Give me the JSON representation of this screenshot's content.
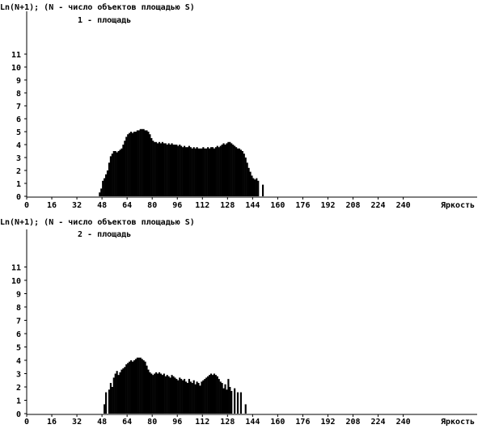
{
  "chart_data": [
    {
      "type": "bar",
      "title": "Ln(N+1); (N - число объектов площадью S)",
      "subtitle": "1 - площадь",
      "xlabel": "Яркость",
      "ylabel": "",
      "xlim": [
        0,
        255
      ],
      "ylim": [
        0,
        11
      ],
      "xticks": [
        "0",
        "16",
        "32",
        "48",
        "64",
        "80",
        "96",
        "112",
        "128",
        "144",
        "160",
        "176",
        "192",
        "208",
        "224",
        "240"
      ],
      "yticks": [
        "0",
        "1",
        "2",
        "3",
        "4",
        "5",
        "6",
        "7",
        "8",
        "9",
        "10",
        "11"
      ],
      "bar_color": "#000000",
      "x_start": 46,
      "values": [
        0.3,
        0.6,
        1.2,
        1.4,
        1.7,
        2.0,
        2.6,
        3.1,
        3.3,
        3.5,
        3.5,
        3.4,
        3.5,
        3.6,
        3.7,
        4.0,
        4.3,
        4.6,
        4.8,
        4.9,
        5.0,
        4.9,
        5.0,
        5.0,
        5.1,
        5.1,
        5.2,
        5.2,
        5.2,
        5.1,
        5.1,
        5.0,
        4.8,
        4.5,
        4.3,
        4.2,
        4.2,
        4.1,
        4.2,
        4.1,
        4.2,
        4.1,
        4.1,
        4.0,
        4.1,
        4.0,
        4.1,
        4.0,
        4.0,
        4.0,
        3.9,
        4.0,
        3.9,
        3.8,
        3.9,
        3.8,
        3.8,
        3.9,
        3.8,
        3.7,
        3.8,
        3.7,
        3.8,
        3.7,
        3.7,
        3.7,
        3.8,
        3.7,
        3.7,
        3.8,
        3.7,
        3.8,
        3.8,
        3.7,
        3.8,
        3.9,
        3.8,
        3.9,
        4.0,
        4.1,
        4.0,
        4.1,
        4.2,
        4.2,
        4.1,
        4.0,
        3.9,
        3.8,
        3.7,
        3.7,
        3.6,
        3.5,
        3.3,
        3.0,
        2.6,
        2.2,
        1.9,
        1.6,
        1.4,
        1.3,
        1.4,
        1.2,
        0.0,
        0.0,
        0.9
      ]
    },
    {
      "type": "bar",
      "title": "Ln(N+1); (N - число объектов площадью S)",
      "subtitle": "2 - площадь",
      "xlabel": "Яркость",
      "ylabel": "",
      "xlim": [
        0,
        255
      ],
      "ylim": [
        0,
        11
      ],
      "xticks": [
        "0",
        "16",
        "32",
        "48",
        "64",
        "80",
        "96",
        "112",
        "128",
        "144",
        "160",
        "176",
        "192",
        "208",
        "224",
        "240"
      ],
      "yticks": [
        "0",
        "1",
        "2",
        "3",
        "4",
        "5",
        "6",
        "7",
        "8",
        "9",
        "10",
        "11"
      ],
      "bar_color": "#000000",
      "x_start": 48,
      "values": [
        0.0,
        0.7,
        1.6,
        0.0,
        1.8,
        2.3,
        2.0,
        2.7,
        3.0,
        3.2,
        2.9,
        3.1,
        3.3,
        3.4,
        3.5,
        3.7,
        3.8,
        3.9,
        4.0,
        3.9,
        4.0,
        4.1,
        4.2,
        4.2,
        4.2,
        4.1,
        4.0,
        3.9,
        3.6,
        3.3,
        3.1,
        3.0,
        2.9,
        3.0,
        3.1,
        3.0,
        3.1,
        3.0,
        2.9,
        3.0,
        2.8,
        2.9,
        2.8,
        2.7,
        2.9,
        2.8,
        2.7,
        2.6,
        2.5,
        2.7,
        2.6,
        2.5,
        2.6,
        2.4,
        2.3,
        2.6,
        2.4,
        2.3,
        2.5,
        2.2,
        2.4,
        2.3,
        2.1,
        2.4,
        2.5,
        2.6,
        2.7,
        2.8,
        2.9,
        3.0,
        2.9,
        3.0,
        2.9,
        2.8,
        2.6,
        2.4,
        2.3,
        1.9,
        2.2,
        1.8,
        2.6,
        2.0,
        1.7,
        0.0,
        1.9,
        0.0,
        1.6,
        0.0,
        1.6,
        0.0,
        0.0,
        0.7
      ]
    }
  ]
}
